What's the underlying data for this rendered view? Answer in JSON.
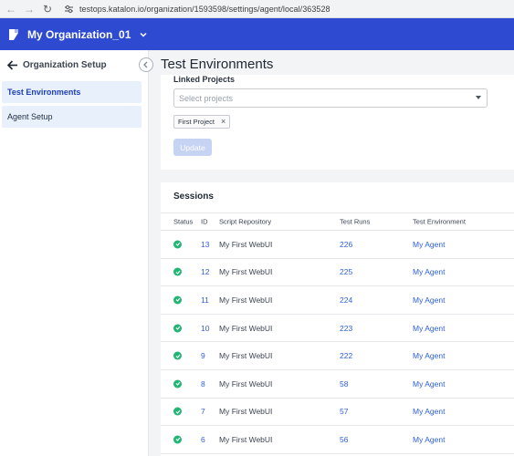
{
  "browser": {
    "url": "testops.katalon.io/organization/1593598/settings/agent/local/363528"
  },
  "header": {
    "org_name": "My Organization_01"
  },
  "sidebar": {
    "title": "Organization Setup",
    "items": [
      {
        "label": "Test Environments",
        "active": true
      },
      {
        "label": "Agent Setup",
        "active": false
      }
    ]
  },
  "page": {
    "title": "Test Environments"
  },
  "linked_projects": {
    "label": "Linked Projects",
    "placeholder": "Select projects",
    "tags": [
      "First Project"
    ],
    "update_label": "Update"
  },
  "sessions": {
    "title": "Sessions",
    "columns": {
      "status": "Status",
      "id": "ID",
      "repo": "Script Repository",
      "runs": "Test Runs",
      "env": "Test Environment"
    },
    "rows": [
      {
        "id": "13",
        "repo": "My First WebUI",
        "runs": "226",
        "env": "My Agent",
        "status": "passed"
      },
      {
        "id": "12",
        "repo": "My First WebUI",
        "runs": "225",
        "env": "My Agent",
        "status": "passed"
      },
      {
        "id": "11",
        "repo": "My First WebUI",
        "runs": "224",
        "env": "My Agent",
        "status": "passed"
      },
      {
        "id": "10",
        "repo": "My First WebUI",
        "runs": "223",
        "env": "My Agent",
        "status": "passed"
      },
      {
        "id": "9",
        "repo": "My First WebUI",
        "runs": "222",
        "env": "My Agent",
        "status": "passed"
      },
      {
        "id": "8",
        "repo": "My First WebUI",
        "runs": "58",
        "env": "My Agent",
        "status": "passed"
      },
      {
        "id": "7",
        "repo": "My First WebUI",
        "runs": "57",
        "env": "My Agent",
        "status": "passed"
      },
      {
        "id": "6",
        "repo": "My First WebUI",
        "runs": "56",
        "env": "My Agent",
        "status": "passed"
      }
    ]
  },
  "colors": {
    "header_bg": "#2d4ad1",
    "link": "#2d5fd8",
    "status_passed": "#22b573",
    "sidebar_active_bg": "#e8f0fb"
  }
}
